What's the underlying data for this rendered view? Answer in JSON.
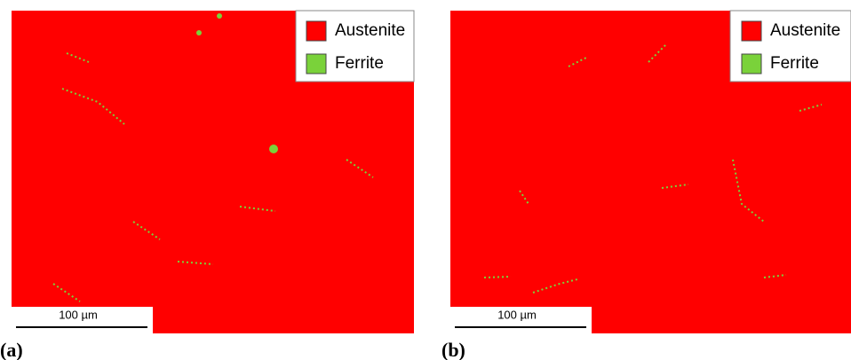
{
  "panels": [
    {
      "label": "(a)",
      "scale_bar": "100 µm",
      "legend": [
        {
          "name": "Austenite",
          "color": "#ff0000"
        },
        {
          "name": "Ferrite",
          "color": "#7ad23a"
        }
      ]
    },
    {
      "label": "(b)",
      "scale_bar": "100 µm",
      "legend": [
        {
          "name": "Austenite",
          "color": "#ff0000"
        },
        {
          "name": "Ferrite",
          "color": "#7ad23a"
        }
      ]
    }
  ]
}
